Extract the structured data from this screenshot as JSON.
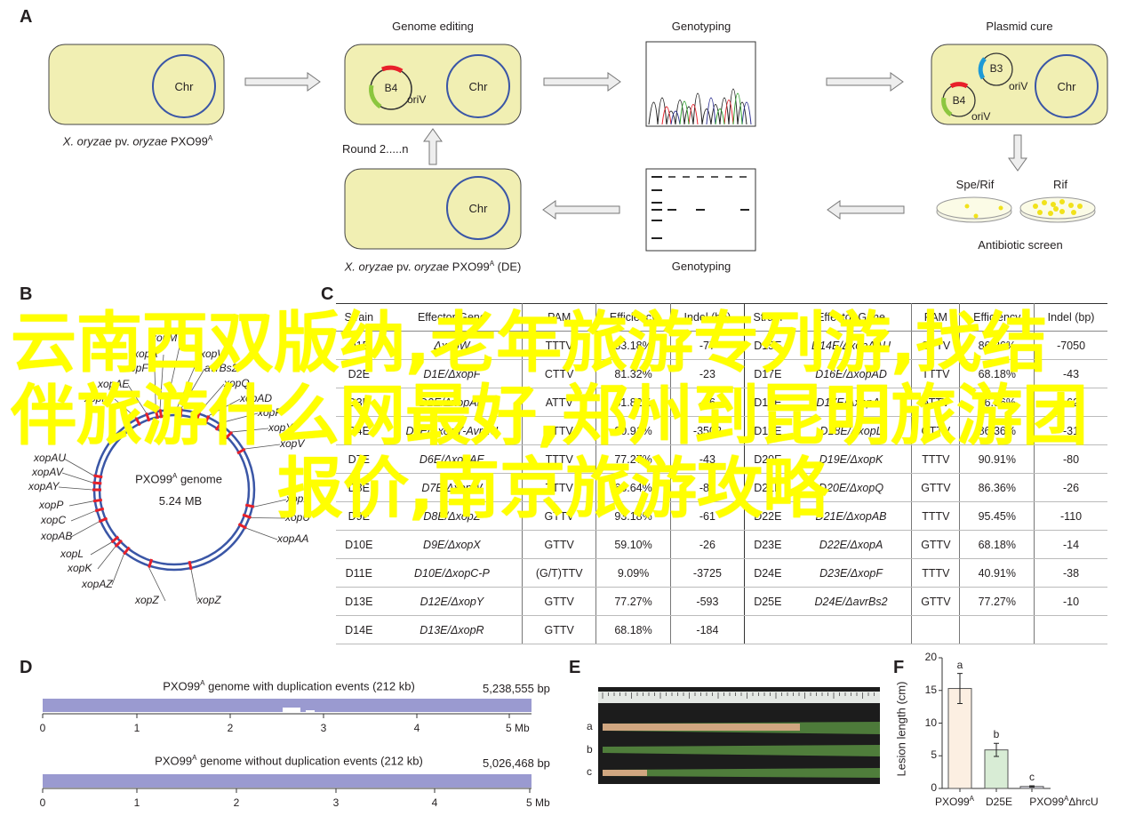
{
  "panels": {
    "a": "A",
    "b": "B",
    "c": "C",
    "d": "D",
    "e": "E",
    "f": "F"
  },
  "panel_a": {
    "strain_caption_italic": "X. oryzae",
    "strain_caption_mid": " pv. ",
    "strain_caption_italic2": "oryzae",
    "strain_caption_end": " PXO99",
    "sup": "A",
    "de_suffix": " (DE)",
    "chr": "Chr",
    "genome_editing": "Genome editing",
    "genotyping": "Genotyping",
    "plasmid_cure": "Plasmid cure",
    "b4": "B4",
    "b3": "B3",
    "oriv": "oriV",
    "round": "Round 2.....n",
    "spe_rif": "Spe/Rif",
    "rif": "Rif",
    "antibiotic_screen": "Antibiotic screen"
  },
  "panel_b": {
    "genome_title": "PXO99",
    "genome_sup": "A",
    "genome_suffix": " genome",
    "genome_size": "5.24 MB",
    "labels": [
      "xopM",
      "xopA",
      "xopW",
      "xopF",
      "avrBs2",
      "xopAE",
      "xopQ",
      "xopN",
      "xopAD",
      "xopP",
      "xopY",
      "xopV",
      "xopAU",
      "xopAV",
      "xopAY",
      "xopP",
      "xopC",
      "xopAB",
      "xopL",
      "xopK",
      "xopAZ",
      "xopZ",
      "xopZ",
      "xopX",
      "xopU",
      "xopAA"
    ]
  },
  "panel_c": {
    "headers": [
      "Strain",
      "Effector Gene",
      "PAM",
      "Efficiency",
      "Indel (bp)"
    ],
    "left_rows": [
      [
        "D1E",
        "ΔxopW",
        "TTTV",
        "83.18%",
        "-77"
      ],
      [
        "D2E",
        "D1E/ΔxopF",
        "CTTV",
        "81.32%",
        "-23"
      ],
      [
        "D3E",
        "D2E/ΔxopAE",
        "ATTV",
        "81.82%",
        "-16"
      ],
      [
        "D4E",
        "D3E/ΔxopY-AvrXU",
        "TTTV",
        "90.91%",
        "-3502"
      ],
      [
        "D7E",
        "D6E/ΔxopAE",
        "TTTV",
        "77.27%",
        "-43"
      ],
      [
        "D8E",
        "D7E/ΔxopW",
        "TTTV",
        "68.64%",
        "-83"
      ],
      [
        "D9E",
        "D8E/ΔxopZ",
        "GTTV",
        "93.18%",
        "-61"
      ],
      [
        "D10E",
        "D9E/ΔxopX",
        "GTTV",
        "59.10%",
        "-26"
      ],
      [
        "D11E",
        "D10E/ΔxopC-P",
        "(G/T)TTV",
        "9.09%",
        "-3725"
      ],
      [
        "D13E",
        "D12E/ΔxopY",
        "GTTV",
        "77.27%",
        "-593"
      ],
      [
        "D14E",
        "D13E/ΔxopR",
        "GTTV",
        "68.18%",
        "-184"
      ]
    ],
    "right_rows": [
      [
        "D15E",
        "D14E/ΔxopAAU",
        "CTTV",
        "86.36%",
        "-7050"
      ],
      [
        "D17E",
        "D16E/ΔxopAD",
        "TTTV",
        "68.18%",
        "-43"
      ],
      [
        "D18E",
        "D17E/ΔxopAT",
        "ATTV",
        "86.36%",
        "-62"
      ],
      [
        "D19E",
        "D18E/ΔxopL",
        "CTTV",
        "86.36%",
        "-31"
      ],
      [
        "D20E",
        "D19E/ΔxopK",
        "TTTV",
        "90.91%",
        "-80"
      ],
      [
        "D21E",
        "D20E/ΔxopQ",
        "GTTV",
        "86.36%",
        "-26"
      ],
      [
        "D22E",
        "D21E/ΔxopAB",
        "TTTV",
        "95.45%",
        "-110"
      ],
      [
        "D23E",
        "D22E/ΔxopA",
        "GTTV",
        "68.18%",
        "-14"
      ],
      [
        "D24E",
        "D23E/ΔxopF",
        "TTTV",
        "40.91%",
        "-38"
      ],
      [
        "D25E",
        "D24E/ΔavrBs2",
        "GTTV",
        "77.27%",
        "-10"
      ],
      [
        "",
        "",
        "",
        "",
        ""
      ]
    ]
  },
  "panel_d": {
    "track1_title": "PXO99",
    "track1_sup": "A",
    "track1_suffix": " genome with duplication events (212 kb)",
    "track1_size": "5,238,555 bp",
    "track2_title": "PXO99",
    "track2_sup": "A",
    "track2_suffix": " genome without duplication events (212 kb)",
    "track2_size": "5,026,468 bp",
    "ticks": [
      "0",
      "1",
      "2",
      "3",
      "4",
      "5 Mb"
    ]
  },
  "panel_e": {
    "leaf_labels": [
      "a",
      "b",
      "c"
    ]
  },
  "chart_data": {
    "type": "bar",
    "categories": [
      "PXO99A",
      "D25E",
      "PXO99AΔhrcU"
    ],
    "category_labels": [
      [
        "PXO99",
        "A",
        ""
      ],
      [
        "D25E",
        "",
        ""
      ],
      [
        "PXO99",
        "A",
        "ΔhrcU"
      ]
    ],
    "values": [
      15.3,
      5.9,
      0.3
    ],
    "errors": [
      2.3,
      1.0,
      0.1
    ],
    "significance": [
      "a",
      "b",
      "c"
    ],
    "colors": [
      "#fcefe2",
      "#d8ecd5",
      "#e3e3f0"
    ],
    "ylabel": "Lesion length (cm)",
    "ylim": [
      0,
      20
    ],
    "yticks": [
      "0",
      "5",
      "10",
      "15",
      "20"
    ]
  },
  "overlay_text": [
    "云南西双版纳,老年旅游专列游,找结",
    "伴旅游什么网最好,郑州到昆明旅游团",
    "报价,南京旅游攻略"
  ],
  "colors": {
    "box": "#f1efb3",
    "chr": "#3a56a6",
    "genome_bar": "#9a9ad0",
    "marker": "#e8202a",
    "overlay": "#ffff00"
  }
}
